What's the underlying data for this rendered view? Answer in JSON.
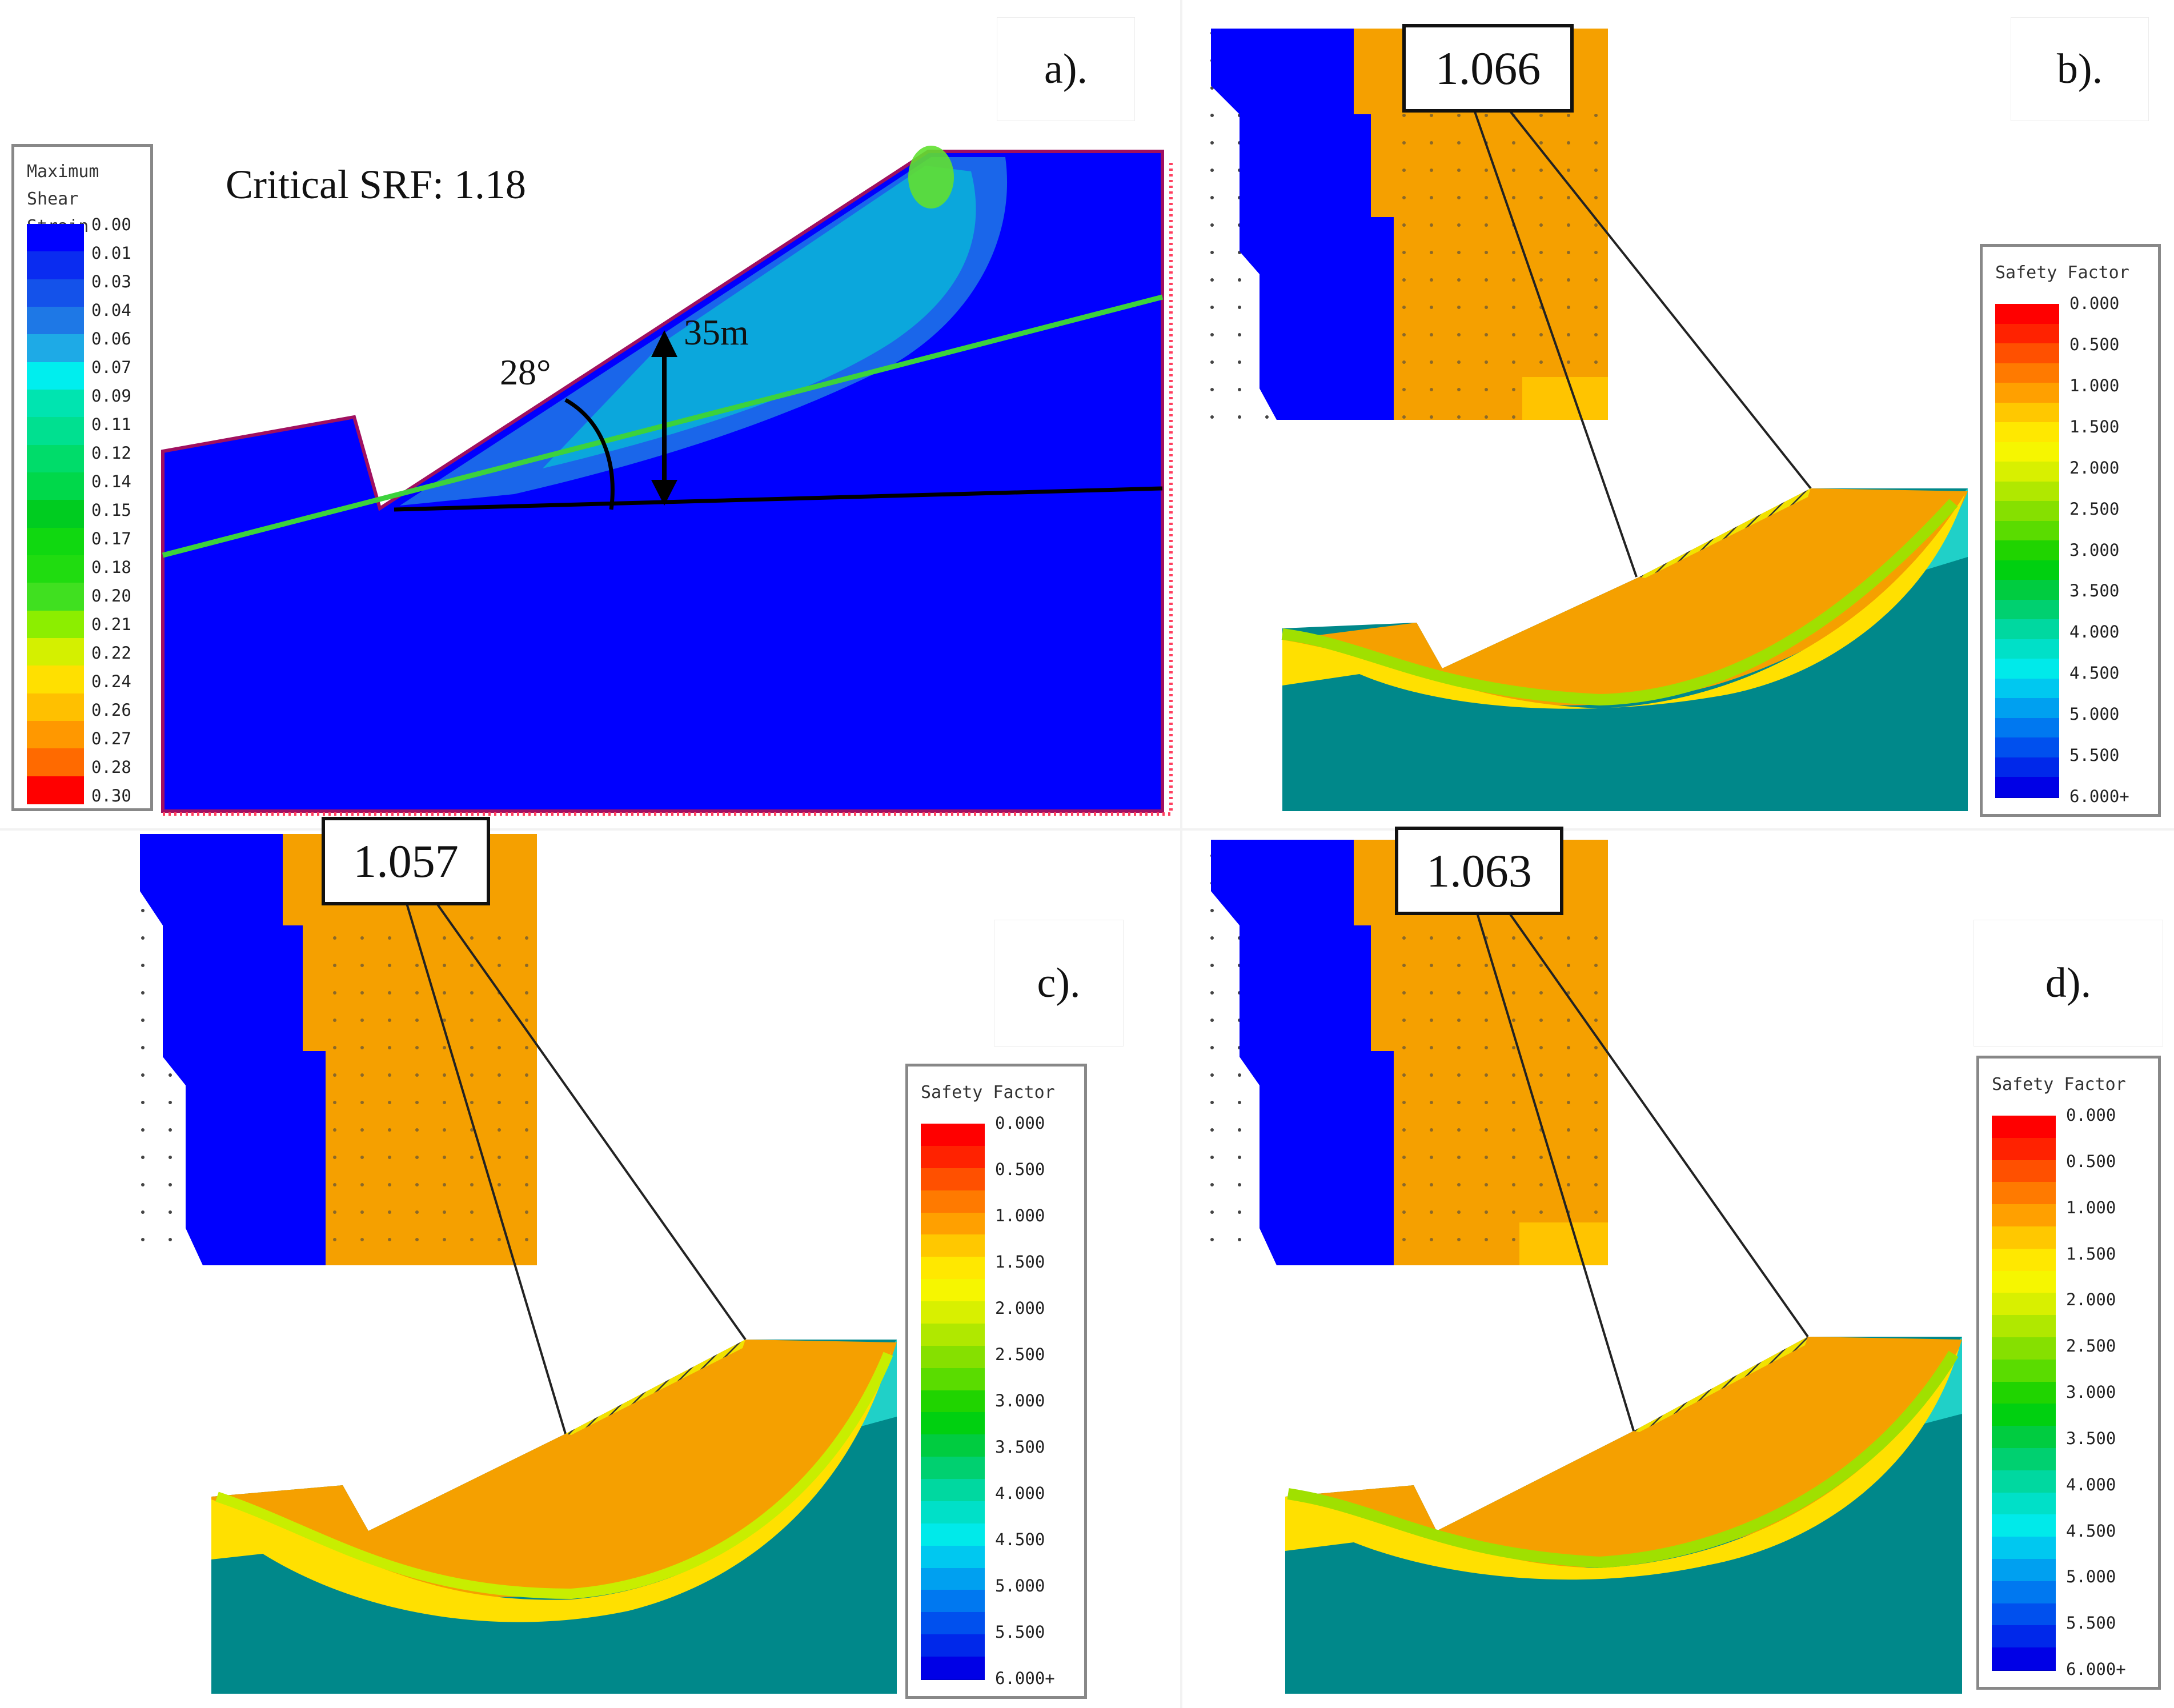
{
  "panels": {
    "a": {
      "label": "a).",
      "srf_text": "Critical SRF: 1.18",
      "angle_text": "28°",
      "height_text": "35m",
      "legend": {
        "title_line1": "Maximum",
        "title_line2": "Shear Strain",
        "labels": [
          "0.00",
          "0.01",
          "0.03",
          "0.04",
          "0.06",
          "0.07",
          "0.09",
          "0.11",
          "0.12",
          "0.14",
          "0.15",
          "0.17",
          "0.18",
          "0.20",
          "0.21",
          "0.22",
          "0.24",
          "0.26",
          "0.27",
          "0.28",
          "0.30"
        ],
        "colors": [
          "#0000ff",
          "#0a2cf0",
          "#1452ea",
          "#1e78e6",
          "#1eaae6",
          "#00eeee",
          "#00e4b0",
          "#00e090",
          "#00dc6a",
          "#00d84a",
          "#00cc20",
          "#10d810",
          "#20dc10",
          "#40e020",
          "#8cee00",
          "#d4f000",
          "#ffe000",
          "#ffc000",
          "#ff9800",
          "#ff6a00",
          "#ff0000"
        ]
      }
    },
    "b": {
      "label": "b).",
      "value": "1.066"
    },
    "c": {
      "label": "c).",
      "value": "1.057"
    },
    "d": {
      "label": "d).",
      "value": "1.063"
    },
    "safety_legend": {
      "title": "Safety Factor",
      "labels": [
        "0.000",
        "0.500",
        "1.000",
        "1.500",
        "2.000",
        "2.500",
        "3.000",
        "3.500",
        "4.000",
        "4.500",
        "5.000",
        "5.500",
        "6.000+"
      ],
      "colors": [
        "#ff0000",
        "#ff2200",
        "#ff5000",
        "#ff7a00",
        "#ffa000",
        "#ffc800",
        "#ffe800",
        "#f6f600",
        "#d8f000",
        "#b0e800",
        "#86e000",
        "#5adc00",
        "#20d400",
        "#00d010",
        "#00cc40",
        "#00d070",
        "#00d8a0",
        "#00e0c8",
        "#00eaea",
        "#00c8f0",
        "#00a0f0",
        "#0078f0",
        "#0050ee",
        "#0028ea",
        "#0000e6"
      ]
    }
  }
}
